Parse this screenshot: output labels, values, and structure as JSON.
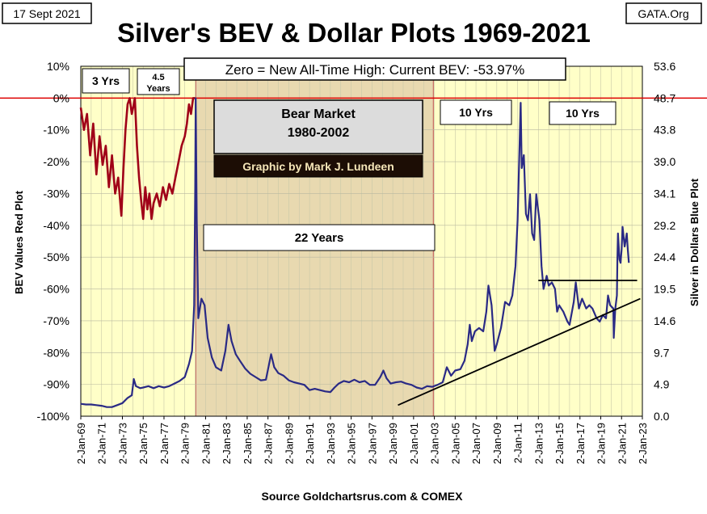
{
  "header": {
    "date": "17 Sept 2021",
    "title": "Silver's BEV & Dollar Plots 1969-2021",
    "brand": "GATA.Org"
  },
  "chart_data": {
    "type": "line",
    "title": "Silver's BEV & Dollar Plots 1969-2021",
    "subtitle": "Zero = New All-Time High: Current BEV: -53.97%",
    "source": "Source Goldchartsrus.com & COMEX",
    "ylabel_left": "BEV Values   Red Plot",
    "ylabel_right": "Silver in Dollars   Blue Plot",
    "y_left_ticks": [
      "10%",
      "0%",
      "-10%",
      "-20%",
      "-30%",
      "-40%",
      "-50%",
      "-60%",
      "-70%",
      "-80%",
      "-90%",
      "-100%"
    ],
    "y_left_range": [
      -100,
      10
    ],
    "y_right_ticks": [
      "53.6",
      "48.7",
      "43.8",
      "39.0",
      "34.1",
      "29.2",
      "24.4",
      "19.5",
      "14.6",
      "9.7",
      "4.9",
      "0.0"
    ],
    "y_right_range": [
      0,
      53.6
    ],
    "x_ticks": [
      "2-Jan-69",
      "2-Jan-71",
      "2-Jan-73",
      "2-Jan-75",
      "2-Jan-77",
      "2-Jan-79",
      "2-Jan-81",
      "2-Jan-83",
      "2-Jan-85",
      "2-Jan-87",
      "2-Jan-89",
      "2-Jan-91",
      "2-Jan-93",
      "2-Jan-95",
      "2-Jan-97",
      "2-Jan-99",
      "2-Jan-01",
      "2-Jan-03",
      "2-Jan-05",
      "2-Jan-07",
      "2-Jan-09",
      "2-Jan-11",
      "2-Jan-13",
      "2-Jan-15",
      "2-Jan-17",
      "2-Jan-19",
      "2-Jan-21",
      "2-Jan-23"
    ],
    "x_range": [
      1969,
      2023
    ],
    "annotations": {
      "bear_market_title": "Bear Market",
      "bear_market_years": "1980-2002",
      "credit": "Graphic by Mark J. Lundeen",
      "period_22": "22 Years",
      "period_3": "3 Yrs",
      "period_45_a": "4.5",
      "period_45_b": "Years",
      "period_10a": "10 Yrs",
      "period_10b": "10 Yrs"
    },
    "shaded_periods": [
      {
        "start": 1969.0,
        "end": 1980.05,
        "color": "#FFFFC8"
      },
      {
        "start": 1980.05,
        "end": 2002.9,
        "color": "#E8D9B0"
      },
      {
        "start": 2002.9,
        "end": 2023.0,
        "color": "#FFFFC8"
      }
    ],
    "zero_line_color": "#DD0000",
    "series": [
      {
        "name": "BEV (Red Plot)",
        "axis": "left",
        "color": "#A00018",
        "points": [
          [
            1969.0,
            -3
          ],
          [
            1969.3,
            -10
          ],
          [
            1969.6,
            -5
          ],
          [
            1969.9,
            -18
          ],
          [
            1970.2,
            -8
          ],
          [
            1970.5,
            -24
          ],
          [
            1970.8,
            -12
          ],
          [
            1971.1,
            -21
          ],
          [
            1971.4,
            -15
          ],
          [
            1971.7,
            -28
          ],
          [
            1972.0,
            -18
          ],
          [
            1972.3,
            -30
          ],
          [
            1972.6,
            -25
          ],
          [
            1972.9,
            -37
          ],
          [
            1973.1,
            -22
          ],
          [
            1973.3,
            -10
          ],
          [
            1973.5,
            -2
          ],
          [
            1973.7,
            0
          ],
          [
            1973.9,
            -5
          ],
          [
            1974.1,
            -2
          ],
          [
            1974.2,
            0
          ],
          [
            1974.4,
            -15
          ],
          [
            1974.6,
            -25
          ],
          [
            1974.8,
            -32
          ],
          [
            1975.0,
            -38
          ],
          [
            1975.2,
            -28
          ],
          [
            1975.4,
            -35
          ],
          [
            1975.6,
            -30
          ],
          [
            1975.8,
            -38
          ],
          [
            1976.0,
            -33
          ],
          [
            1976.3,
            -30
          ],
          [
            1976.6,
            -34
          ],
          [
            1976.9,
            -28
          ],
          [
            1977.2,
            -32
          ],
          [
            1977.5,
            -27
          ],
          [
            1977.8,
            -30
          ],
          [
            1978.1,
            -25
          ],
          [
            1978.4,
            -20
          ],
          [
            1978.7,
            -15
          ],
          [
            1979.0,
            -12
          ],
          [
            1979.2,
            -8
          ],
          [
            1979.4,
            -2
          ],
          [
            1979.6,
            -5
          ],
          [
            1979.8,
            0
          ],
          [
            1980.0,
            0
          ]
        ]
      },
      {
        "name": "Silver $ (Blue Plot)",
        "axis": "right",
        "color": "#2A2A85",
        "points": [
          [
            1969.0,
            1.9
          ],
          [
            1969.5,
            1.8
          ],
          [
            1970.0,
            1.8
          ],
          [
            1970.5,
            1.7
          ],
          [
            1971.0,
            1.6
          ],
          [
            1971.5,
            1.4
          ],
          [
            1972.0,
            1.4
          ],
          [
            1972.5,
            1.7
          ],
          [
            1973.0,
            2.0
          ],
          [
            1973.5,
            2.8
          ],
          [
            1973.9,
            3.2
          ],
          [
            1974.1,
            5.7
          ],
          [
            1974.3,
            4.6
          ],
          [
            1974.7,
            4.3
          ],
          [
            1975.0,
            4.4
          ],
          [
            1975.5,
            4.6
          ],
          [
            1976.0,
            4.3
          ],
          [
            1976.5,
            4.6
          ],
          [
            1977.0,
            4.4
          ],
          [
            1977.5,
            4.6
          ],
          [
            1978.0,
            5.0
          ],
          [
            1978.5,
            5.4
          ],
          [
            1979.0,
            6.0
          ],
          [
            1979.4,
            8.0
          ],
          [
            1979.7,
            10.0
          ],
          [
            1979.9,
            17.0
          ],
          [
            1980.0,
            35.0
          ],
          [
            1980.05,
            48.7
          ],
          [
            1980.15,
            30.0
          ],
          [
            1980.3,
            15.0
          ],
          [
            1980.6,
            18.0
          ],
          [
            1980.9,
            17.0
          ],
          [
            1981.2,
            12.0
          ],
          [
            1981.6,
            9.0
          ],
          [
            1982.0,
            7.5
          ],
          [
            1982.5,
            7.0
          ],
          [
            1982.9,
            10.0
          ],
          [
            1983.2,
            14.0
          ],
          [
            1983.5,
            11.5
          ],
          [
            1983.9,
            9.5
          ],
          [
            1984.3,
            8.5
          ],
          [
            1984.8,
            7.3
          ],
          [
            1985.3,
            6.5
          ],
          [
            1985.8,
            6.0
          ],
          [
            1986.3,
            5.5
          ],
          [
            1986.8,
            5.6
          ],
          [
            1987.3,
            9.5
          ],
          [
            1987.6,
            7.5
          ],
          [
            1988.0,
            6.6
          ],
          [
            1988.5,
            6.2
          ],
          [
            1989.0,
            5.5
          ],
          [
            1989.5,
            5.2
          ],
          [
            1990.0,
            5.0
          ],
          [
            1990.5,
            4.8
          ],
          [
            1991.0,
            4.0
          ],
          [
            1991.5,
            4.2
          ],
          [
            1992.0,
            4.0
          ],
          [
            1992.5,
            3.8
          ],
          [
            1993.0,
            3.7
          ],
          [
            1993.4,
            4.4
          ],
          [
            1993.8,
            5.0
          ],
          [
            1994.3,
            5.4
          ],
          [
            1994.8,
            5.2
          ],
          [
            1995.3,
            5.6
          ],
          [
            1995.8,
            5.2
          ],
          [
            1996.3,
            5.4
          ],
          [
            1996.8,
            4.8
          ],
          [
            1997.3,
            4.8
          ],
          [
            1997.8,
            6.0
          ],
          [
            1998.1,
            7.0
          ],
          [
            1998.4,
            5.8
          ],
          [
            1998.8,
            5.0
          ],
          [
            1999.3,
            5.2
          ],
          [
            1999.8,
            5.3
          ],
          [
            2000.3,
            5.0
          ],
          [
            2000.8,
            4.8
          ],
          [
            2001.3,
            4.4
          ],
          [
            2001.8,
            4.2
          ],
          [
            2002.3,
            4.6
          ],
          [
            2002.8,
            4.5
          ],
          [
            2003.3,
            4.8
          ],
          [
            2003.8,
            5.2
          ],
          [
            2004.2,
            7.5
          ],
          [
            2004.6,
            6.2
          ],
          [
            2005.0,
            7.0
          ],
          [
            2005.5,
            7.2
          ],
          [
            2005.9,
            8.5
          ],
          [
            2006.2,
            11.0
          ],
          [
            2006.4,
            14.0
          ],
          [
            2006.6,
            11.5
          ],
          [
            2006.9,
            13.0
          ],
          [
            2007.3,
            13.5
          ],
          [
            2007.7,
            13.0
          ],
          [
            2008.0,
            16.0
          ],
          [
            2008.2,
            20.0
          ],
          [
            2008.5,
            17.0
          ],
          [
            2008.8,
            10.0
          ],
          [
            2009.0,
            11.0
          ],
          [
            2009.4,
            13.5
          ],
          [
            2009.8,
            17.5
          ],
          [
            2010.2,
            17.0
          ],
          [
            2010.5,
            18.5
          ],
          [
            2010.8,
            23.0
          ],
          [
            2011.0,
            30.0
          ],
          [
            2011.3,
            48.0
          ],
          [
            2011.4,
            38.0
          ],
          [
            2011.6,
            40.0
          ],
          [
            2011.8,
            31.0
          ],
          [
            2012.0,
            30.0
          ],
          [
            2012.2,
            34.0
          ],
          [
            2012.4,
            28.0
          ],
          [
            2012.6,
            27.0
          ],
          [
            2012.8,
            34.0
          ],
          [
            2013.1,
            30.0
          ],
          [
            2013.3,
            23.0
          ],
          [
            2013.5,
            19.5
          ],
          [
            2013.8,
            21.5
          ],
          [
            2014.0,
            20.0
          ],
          [
            2014.3,
            20.5
          ],
          [
            2014.6,
            19.5
          ],
          [
            2014.8,
            16.0
          ],
          [
            2015.0,
            17.0
          ],
          [
            2015.4,
            16.0
          ],
          [
            2015.8,
            14.5
          ],
          [
            2016.0,
            14.0
          ],
          [
            2016.4,
            17.5
          ],
          [
            2016.6,
            20.5
          ],
          [
            2016.9,
            16.5
          ],
          [
            2017.2,
            18.0
          ],
          [
            2017.6,
            16.5
          ],
          [
            2017.9,
            17.0
          ],
          [
            2018.2,
            16.5
          ],
          [
            2018.6,
            15.0
          ],
          [
            2018.9,
            14.5
          ],
          [
            2019.2,
            15.5
          ],
          [
            2019.5,
            15.0
          ],
          [
            2019.7,
            18.5
          ],
          [
            2019.9,
            17.0
          ],
          [
            2020.2,
            16.5
          ],
          [
            2020.25,
            12.0
          ],
          [
            2020.4,
            16.5
          ],
          [
            2020.55,
            18.5
          ],
          [
            2020.6,
            24.0
          ],
          [
            2020.65,
            28.0
          ],
          [
            2020.8,
            24.0
          ],
          [
            2020.9,
            23.5
          ],
          [
            2021.0,
            25.5
          ],
          [
            2021.1,
            29.0
          ],
          [
            2021.3,
            26.0
          ],
          [
            2021.5,
            28.0
          ],
          [
            2021.6,
            25.5
          ],
          [
            2021.7,
            23.5
          ]
        ]
      }
    ],
    "trend_lines": [
      {
        "name": "rising support line",
        "axis": "right",
        "from": [
          1999.5,
          1.7
        ],
        "to": [
          2022.8,
          18.0
        ]
      },
      {
        "name": "horizontal resistance line",
        "axis": "right",
        "from": [
          2013.0,
          20.8
        ],
        "to": [
          2022.5,
          20.8
        ]
      }
    ]
  }
}
